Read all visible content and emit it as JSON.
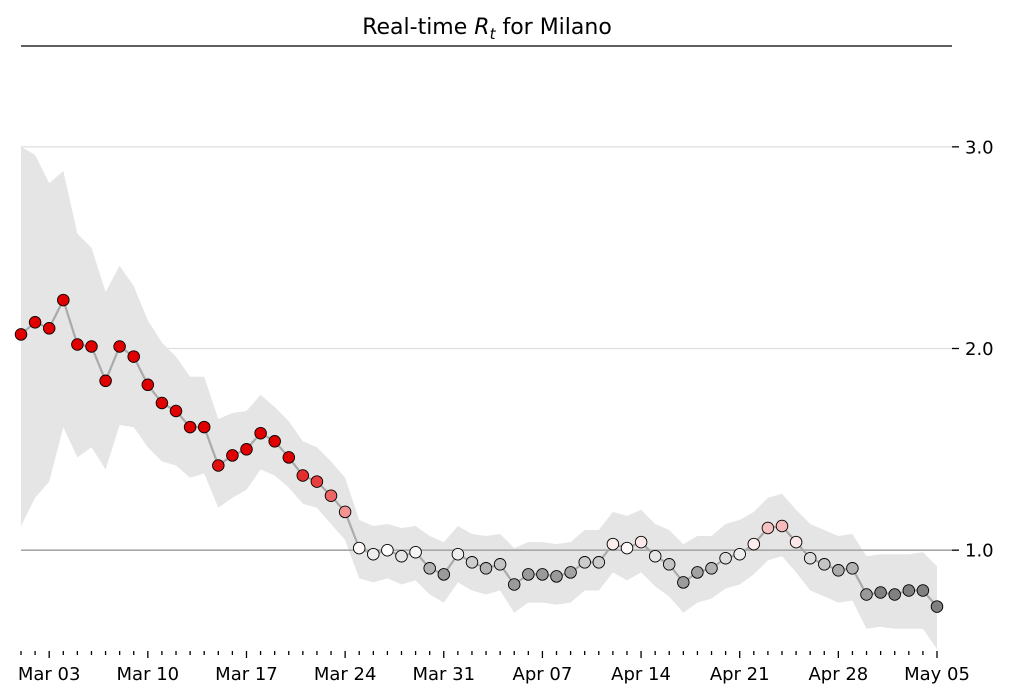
{
  "chart_data": {
    "type": "line",
    "title": {
      "prefix": "Real-time ",
      "symbol": "R",
      "subscript": "t",
      "suffix": " for Milano"
    },
    "x_start": "2020-03-01",
    "x_end": "2020-05-05",
    "ylim": [
      0.5,
      3.5
    ],
    "yticks": [
      {
        "value": 1.0,
        "label": "1.0"
      },
      {
        "value": 2.0,
        "label": "2.0"
      },
      {
        "value": 3.0,
        "label": "3.0"
      }
    ],
    "xticks": [
      {
        "date": "2020-03-03",
        "label": "Mar 03"
      },
      {
        "date": "2020-03-10",
        "label": "Mar 10"
      },
      {
        "date": "2020-03-17",
        "label": "Mar 17"
      },
      {
        "date": "2020-03-24",
        "label": "Mar 24"
      },
      {
        "date": "2020-03-31",
        "label": "Mar 31"
      },
      {
        "date": "2020-04-07",
        "label": "Apr 07"
      },
      {
        "date": "2020-04-14",
        "label": "Apr 14"
      },
      {
        "date": "2020-04-21",
        "label": "Apr 21"
      },
      {
        "date": "2020-04-28",
        "label": "Apr 28"
      },
      {
        "date": "2020-05-05",
        "label": "May 05"
      }
    ],
    "reference_line": 1.0,
    "grid": true,
    "confirmed_cutoff_date": "2020-04-30",
    "colors": {
      "high": "#e00000",
      "neutral": "#ffffff",
      "low": "#9a9a9a",
      "unconfirmed": "#808080",
      "band": "#e5e5e5",
      "line": "#aaaaaa"
    },
    "series": [
      {
        "values": [
          2.07,
          2.13,
          2.1,
          2.24,
          2.02,
          2.01,
          1.84,
          2.01,
          1.96,
          1.82,
          1.73,
          1.69,
          1.61,
          1.61,
          1.42,
          1.47,
          1.5,
          1.58,
          1.54,
          1.46,
          1.37,
          1.34,
          1.27,
          1.19,
          1.01,
          0.98,
          1.0,
          0.97,
          0.99,
          0.91,
          0.88,
          0.98,
          0.94,
          0.91,
          0.93,
          0.83,
          0.88,
          0.88,
          0.87,
          0.89,
          0.94,
          0.94,
          1.03,
          1.01,
          1.04,
          0.97,
          0.93,
          0.84,
          0.89,
          0.91,
          0.96,
          0.98,
          1.03,
          1.11,
          1.12,
          1.04,
          0.96,
          0.93,
          0.9,
          0.91,
          0.78,
          0.79,
          0.78,
          0.8,
          0.8,
          0.72
        ],
        "upper": [
          3.0,
          2.96,
          2.82,
          2.88,
          2.57,
          2.5,
          2.28,
          2.41,
          2.31,
          2.14,
          2.03,
          1.96,
          1.86,
          1.86,
          1.65,
          1.68,
          1.69,
          1.77,
          1.71,
          1.64,
          1.54,
          1.51,
          1.44,
          1.36,
          1.15,
          1.12,
          1.13,
          1.11,
          1.12,
          1.07,
          1.04,
          1.12,
          1.08,
          1.07,
          1.08,
          1.01,
          1.04,
          1.04,
          1.03,
          1.04,
          1.1,
          1.1,
          1.19,
          1.17,
          1.2,
          1.13,
          1.1,
          1.03,
          1.07,
          1.07,
          1.13,
          1.15,
          1.19,
          1.26,
          1.28,
          1.2,
          1.13,
          1.1,
          1.07,
          1.08,
          0.97,
          0.98,
          0.98,
          0.98,
          0.99,
          0.92
        ],
        "lower": [
          1.12,
          1.26,
          1.34,
          1.61,
          1.46,
          1.51,
          1.4,
          1.62,
          1.61,
          1.51,
          1.44,
          1.42,
          1.36,
          1.38,
          1.21,
          1.26,
          1.3,
          1.4,
          1.37,
          1.31,
          1.23,
          1.21,
          1.13,
          1.05,
          0.86,
          0.84,
          0.86,
          0.83,
          0.85,
          0.78,
          0.74,
          0.84,
          0.8,
          0.78,
          0.8,
          0.69,
          0.74,
          0.74,
          0.73,
          0.74,
          0.8,
          0.8,
          0.89,
          0.85,
          0.89,
          0.82,
          0.77,
          0.69,
          0.74,
          0.76,
          0.81,
          0.83,
          0.88,
          0.95,
          0.97,
          0.89,
          0.8,
          0.77,
          0.74,
          0.75,
          0.61,
          0.62,
          0.61,
          0.61,
          0.61,
          0.51
        ]
      }
    ]
  }
}
